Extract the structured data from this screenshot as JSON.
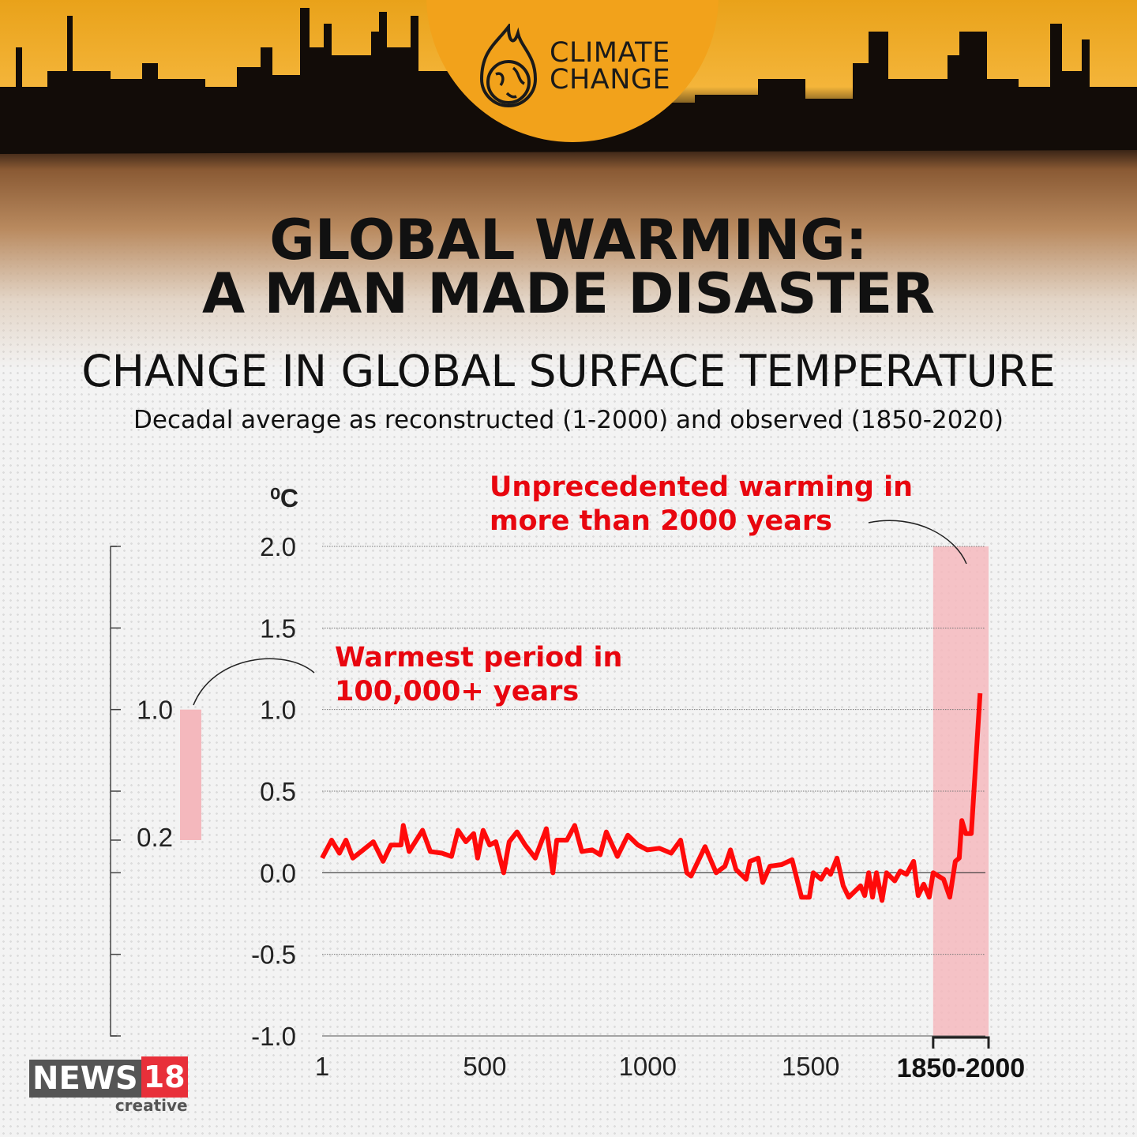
{
  "header": {
    "logo_line1": "CLIMATE",
    "logo_line2": "CHANGE",
    "title_line1": "GLOBAL WARMING:",
    "title_line2": "A MAN MADE DISASTER"
  },
  "chart_data": {
    "type": "line",
    "title": "CHANGE IN GLOBAL SURFACE TEMPERATURE",
    "subtitle": "Decadal average as reconstructed (1-2000) and observed (1850-2020)",
    "ylabel": "⁰C",
    "ylim": [
      -1.0,
      2.0
    ],
    "xlim": [
      1,
      2046
    ],
    "yticks": [
      "2.0",
      "1.5",
      "1.0",
      "0.5",
      "0.0",
      "-0.5",
      "-1.0"
    ],
    "xticks": [
      {
        "value": 1,
        "label": "1"
      },
      {
        "value": 500,
        "label": "500"
      },
      {
        "value": 1000,
        "label": "1000"
      },
      {
        "value": 1500,
        "label": "1500"
      }
    ],
    "xtick_highlight": "1850-2000",
    "grid": true,
    "line_color": "#ff0a0a",
    "highlight_color": "#f4b8bd",
    "highlight_range": [
      1876,
      2046
    ],
    "x": [
      1,
      30,
      54,
      74,
      95,
      127,
      158,
      188,
      212,
      243,
      250,
      268,
      309,
      333,
      369,
      398,
      418,
      442,
      466,
      478,
      495,
      515,
      534,
      558,
      575,
      599,
      624,
      655,
      689,
      709,
      721,
      752,
      776,
      798,
      830,
      854,
      873,
      907,
      939,
      970,
      999,
      1036,
      1072,
      1101,
      1120,
      1133,
      1176,
      1210,
      1237,
      1254,
      1271,
      1302,
      1314,
      1339,
      1353,
      1375,
      1411,
      1443,
      1472,
      1496,
      1508,
      1532,
      1549,
      1561,
      1581,
      1600,
      1617,
      1653,
      1666,
      1678,
      1690,
      1702,
      1719,
      1733,
      1758,
      1775,
      1794,
      1816,
      1830,
      1847,
      1864,
      1876,
      1908,
      1927,
      1944,
      1956,
      1964,
      1976,
      1993,
      2020
    ],
    "y": [
      0.09,
      0.2,
      0.12,
      0.2,
      0.09,
      0.14,
      0.19,
      0.07,
      0.17,
      0.17,
      0.29,
      0.13,
      0.26,
      0.13,
      0.12,
      0.1,
      0.26,
      0.19,
      0.24,
      0.09,
      0.26,
      0.17,
      0.19,
      0.0,
      0.19,
      0.25,
      0.17,
      0.09,
      0.27,
      0.0,
      0.2,
      0.2,
      0.29,
      0.13,
      0.14,
      0.11,
      0.25,
      0.1,
      0.23,
      0.17,
      0.14,
      0.15,
      0.12,
      0.2,
      0.0,
      -0.02,
      0.16,
      0.0,
      0.04,
      0.14,
      0.02,
      -0.04,
      0.07,
      0.09,
      -0.06,
      0.04,
      0.05,
      0.08,
      -0.15,
      -0.15,
      0.0,
      -0.04,
      0.02,
      -0.01,
      0.09,
      -0.08,
      -0.15,
      -0.08,
      -0.14,
      0.0,
      -0.15,
      0.0,
      -0.17,
      0.0,
      -0.05,
      0.01,
      -0.01,
      0.07,
      -0.14,
      -0.07,
      -0.15,
      0.0,
      -0.04,
      -0.15,
      0.07,
      0.09,
      0.32,
      0.24,
      0.24,
      1.1
    ],
    "side_scale": {
      "labels": [
        "1.0",
        "0.2"
      ],
      "range": [
        0.2,
        1.0
      ]
    },
    "annotations": [
      {
        "id": "unprecedented",
        "line1": "Unprecedented warming in",
        "line2": "more than 2000 years"
      },
      {
        "id": "warmest",
        "line1": "Warmest period in",
        "line2": "100,000+ years"
      }
    ]
  },
  "footer": {
    "brand": "NEWS",
    "brand_number": "18",
    "brand_sub": "creative",
    "brand_color": "#e8303a"
  }
}
